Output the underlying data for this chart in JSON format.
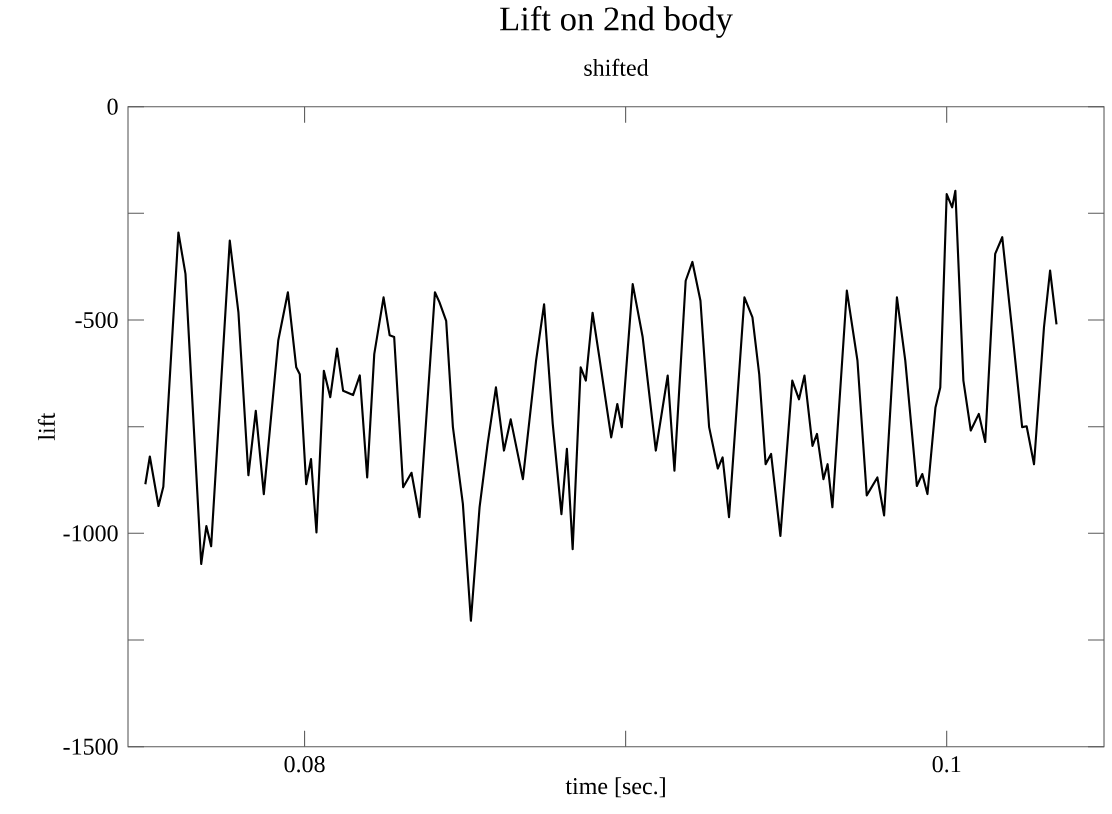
{
  "chart_data": {
    "type": "line",
    "title": "Lift on 2nd body",
    "subtitle": "shifted",
    "xlabel": "time [sec.]",
    "ylabel": "lift",
    "xlim": [
      0.0745,
      0.1049
    ],
    "ylim": [
      -1500,
      0
    ],
    "xticks": [
      0.08,
      {
        "value": 0.09,
        "label": null
      },
      0.1
    ],
    "yticks": [
      -1500,
      {
        "value": -1250,
        "label": null
      },
      -1000,
      {
        "value": -750,
        "label": null
      },
      -500,
      {
        "value": -250,
        "label": null
      },
      0
    ],
    "grid": false,
    "marker": "none",
    "line_style": "solid",
    "series": [
      {
        "color": "#000000",
        "x": [
          0.07504,
          0.07518,
          0.07545,
          0.0756,
          0.07607,
          0.07629,
          0.07678,
          0.07694,
          0.07709,
          0.07767,
          0.07794,
          0.07825,
          0.07848,
          0.07873,
          0.07918,
          0.07948,
          0.07974,
          0.07985,
          0.08005,
          0.0802,
          0.08037,
          0.0806,
          0.0808,
          0.08101,
          0.0812,
          0.08151,
          0.08172,
          0.08195,
          0.08217,
          0.08246,
          0.08265,
          0.08279,
          0.08307,
          0.08333,
          0.08358,
          0.08406,
          0.0842,
          0.08441,
          0.08462,
          0.08493,
          0.08518,
          0.08545,
          0.0857,
          0.08596,
          0.08621,
          0.08642,
          0.0868,
          0.08721,
          0.08746,
          0.08773,
          0.088,
          0.08817,
          0.08835,
          0.0886,
          0.08876,
          0.08897,
          0.08918,
          0.08955,
          0.08974,
          0.08988,
          0.09022,
          0.09053,
          0.09094,
          0.09131,
          0.09152,
          0.09187,
          0.09208,
          0.09233,
          0.0926,
          0.09287,
          0.09302,
          0.09322,
          0.0937,
          0.09395,
          0.09416,
          0.09436,
          0.09453,
          0.09482,
          0.09519,
          0.0954,
          0.09557,
          0.09582,
          0.09596,
          0.09616,
          0.09629,
          0.09644,
          0.09689,
          0.09722,
          0.09751,
          0.09784,
          0.09805,
          0.09845,
          0.09871,
          0.09907,
          0.09924,
          0.0994,
          0.09965,
          0.0998,
          0.1,
          0.10017,
          0.10027,
          0.10052,
          0.10075,
          0.101,
          0.1012,
          0.10151,
          0.10173,
          0.10204,
          0.10235,
          0.10249,
          0.10272,
          0.10303,
          0.10322,
          0.10342
        ],
        "values": [
          -885,
          -820,
          -936,
          -891,
          -295,
          -392,
          -1072,
          -983,
          -1030,
          -314,
          -483,
          -864,
          -713,
          -908,
          -548,
          -435,
          -611,
          -627,
          -885,
          -826,
          -998,
          -619,
          -681,
          -567,
          -666,
          -676,
          -630,
          -869,
          -580,
          -447,
          -536,
          -540,
          -892,
          -858,
          -962,
          -435,
          -458,
          -502,
          -751,
          -931,
          -1205,
          -939,
          -791,
          -658,
          -806,
          -733,
          -873,
          -595,
          -463,
          -744,
          -955,
          -802,
          -1037,
          -611,
          -642,
          -483,
          -587,
          -775,
          -697,
          -751,
          -416,
          -540,
          -806,
          -630,
          -853,
          -408,
          -364,
          -455,
          -751,
          -848,
          -822,
          -962,
          -447,
          -494,
          -627,
          -838,
          -814,
          -1006,
          -642,
          -686,
          -630,
          -795,
          -767,
          -873,
          -838,
          -939,
          -431,
          -595,
          -911,
          -869,
          -958,
          -447,
          -595,
          -889,
          -861,
          -908,
          -705,
          -658,
          -205,
          -236,
          -197,
          -642,
          -759,
          -720,
          -786,
          -345,
          -306,
          -525,
          -751,
          -749,
          -838,
          -517,
          -384,
          -510
        ]
      }
    ]
  }
}
